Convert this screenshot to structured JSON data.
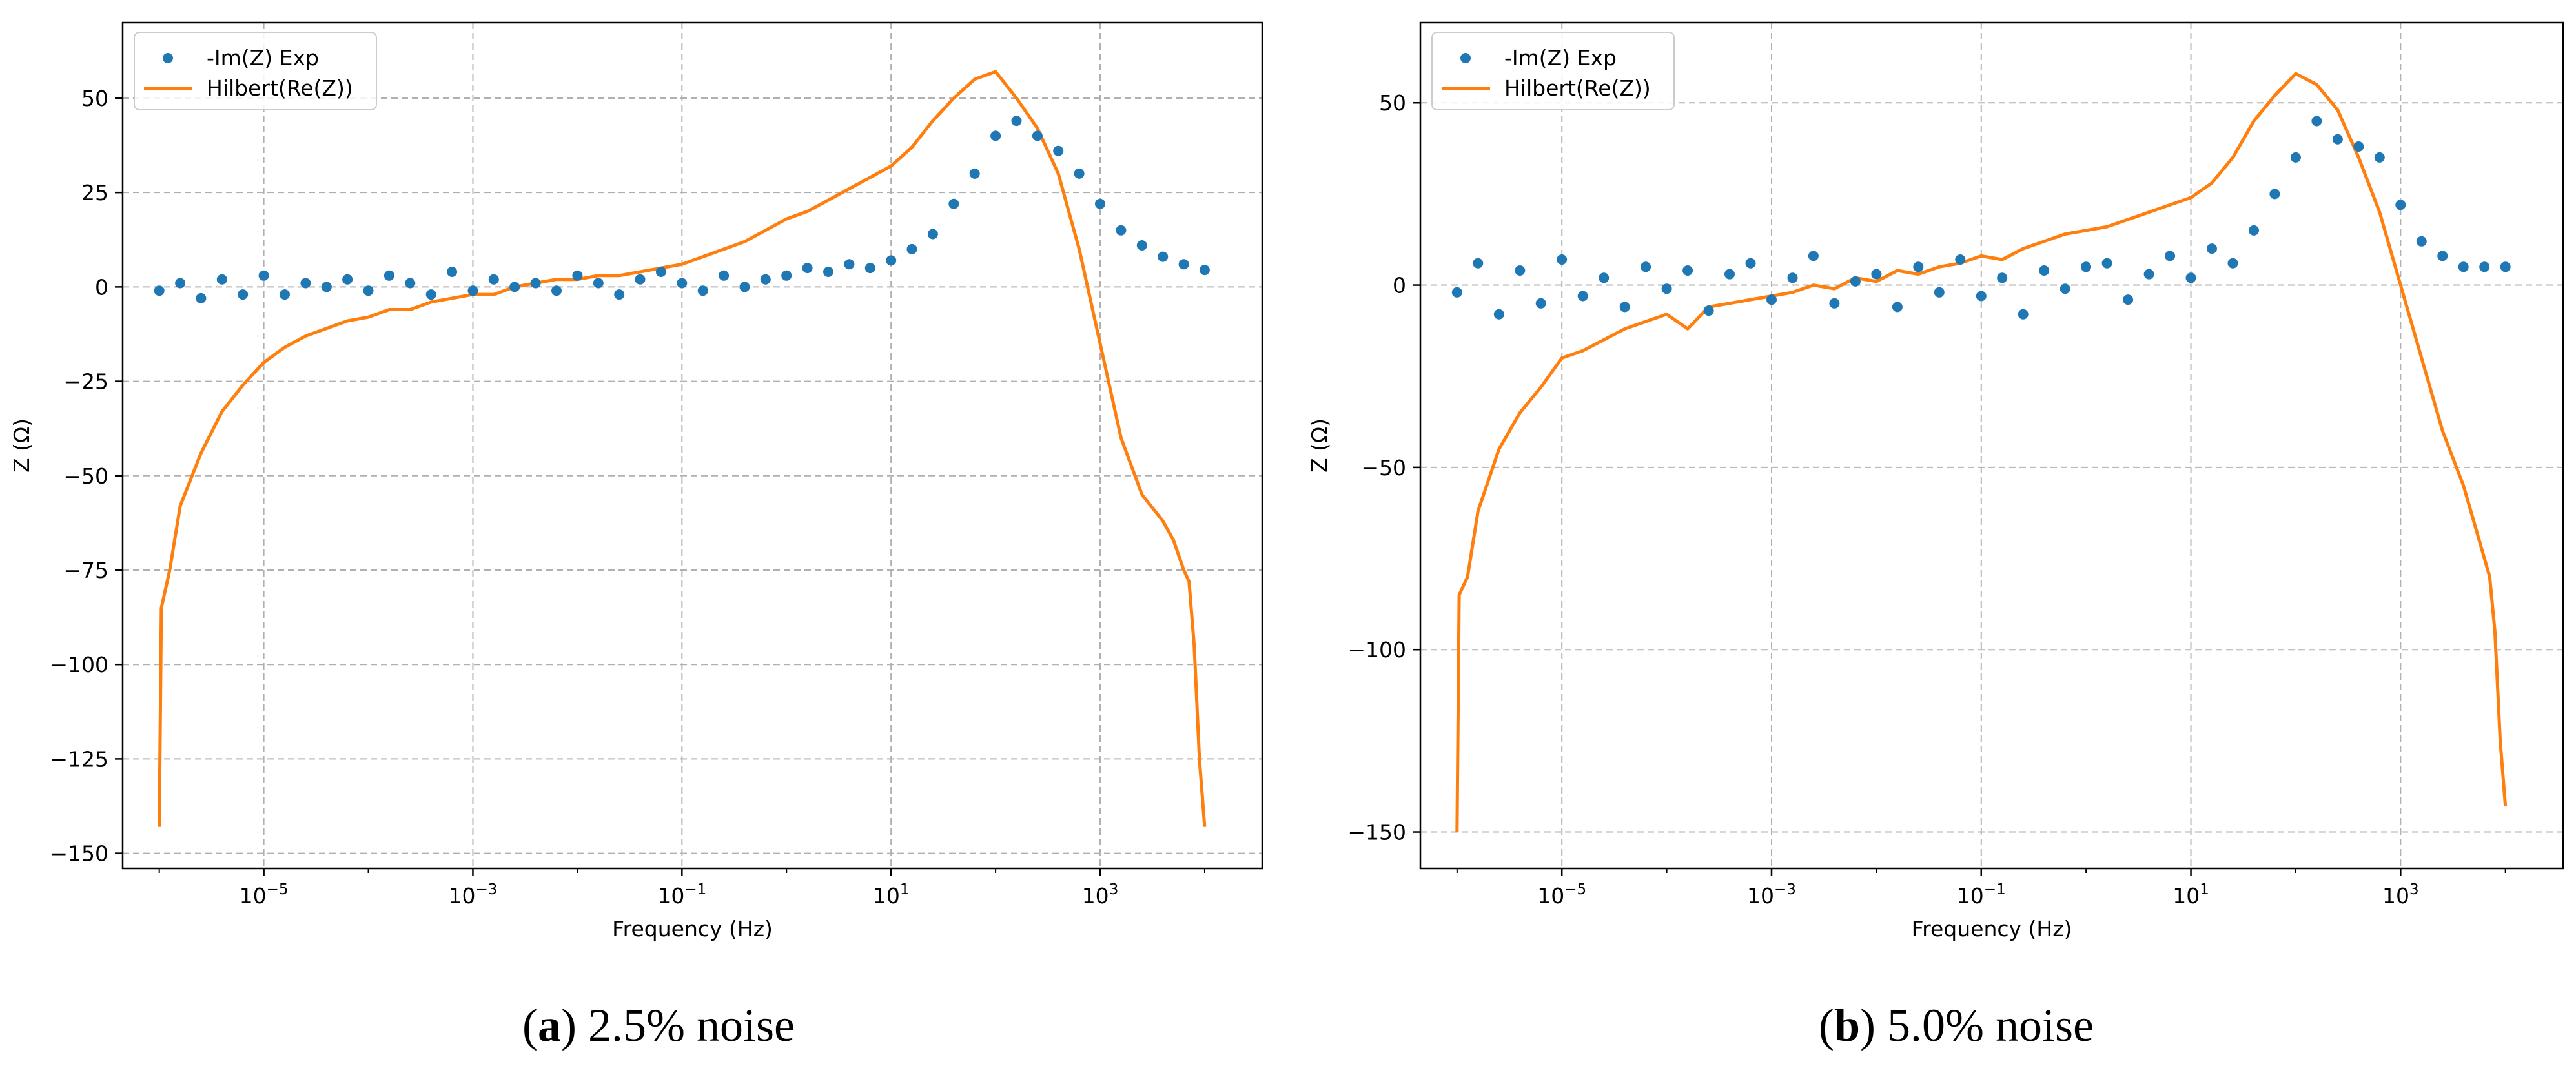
{
  "chart_data": [
    {
      "id": "a",
      "type": "scatter+line",
      "caption": {
        "letter": "a",
        "text": " 2.5% noise"
      },
      "xlabel": "Frequency (Hz)",
      "ylabel": "Z (Ω)",
      "xscale": "log",
      "xlim_log10": [
        -6.35,
        4.55
      ],
      "ylim": [
        -154,
        70
      ],
      "grid": true,
      "legend_position": "top-left",
      "xticks": [
        {
          "exp": -5,
          "base": "10",
          "label": "−5"
        },
        {
          "exp": -3,
          "base": "10",
          "label": "−3"
        },
        {
          "exp": -1,
          "base": "10",
          "label": "−1"
        },
        {
          "exp": 1,
          "base": "10",
          "label": "1"
        },
        {
          "exp": 3,
          "base": "10",
          "label": "3"
        }
      ],
      "yticks": [
        {
          "value": 50,
          "label": "50"
        },
        {
          "value": 25,
          "label": "25"
        },
        {
          "value": 0,
          "label": "0"
        },
        {
          "value": -25,
          "label": "−25"
        },
        {
          "value": -50,
          "label": "−50"
        },
        {
          "value": -75,
          "label": "−75"
        },
        {
          "value": -100,
          "label": "−100"
        },
        {
          "value": -125,
          "label": "−125"
        },
        {
          "value": -150,
          "label": "−150"
        }
      ],
      "series": [
        {
          "name": "-Im(Z) Exp",
          "kind": "scatter",
          "color": "#1f77b4",
          "log10_freq": [
            -6,
            -5.8,
            -5.6,
            -5.4,
            -5.2,
            -5,
            -4.8,
            -4.6,
            -4.4,
            -4.2,
            -4,
            -3.8,
            -3.6,
            -3.4,
            -3.2,
            -3,
            -2.8,
            -2.6,
            -2.4,
            -2.2,
            -2,
            -1.8,
            -1.6,
            -1.4,
            -1.2,
            -1,
            -0.8,
            -0.6,
            -0.4,
            -0.2,
            0,
            0.2,
            0.4,
            0.6,
            0.8,
            1,
            1.2,
            1.4,
            1.6,
            1.8,
            2,
            2.2,
            2.4,
            2.6,
            2.8,
            3,
            3.2,
            3.4,
            3.6,
            3.8,
            4
          ],
          "values": [
            -1,
            1,
            -3,
            2,
            -2,
            3,
            -2,
            1,
            0,
            2,
            -1,
            3,
            1,
            -2,
            4,
            -1,
            2,
            0,
            1,
            -1,
            3,
            1,
            -2,
            2,
            4,
            1,
            -1,
            3,
            0,
            2,
            3,
            5,
            4,
            6,
            5,
            7,
            10,
            14,
            22,
            30,
            40,
            44,
            40,
            36,
            30,
            22,
            15,
            11,
            8,
            6,
            4.5
          ]
        },
        {
          "name": "Hilbert(Re(Z))",
          "kind": "line",
          "color": "#ff7f0e",
          "log10_freq": [
            -6,
            -5.98,
            -5.9,
            -5.8,
            -5.6,
            -5.4,
            -5.2,
            -5,
            -4.8,
            -4.6,
            -4.4,
            -4.2,
            -4,
            -3.8,
            -3.6,
            -3.4,
            -3.2,
            -3,
            -2.8,
            -2.6,
            -2.4,
            -2.2,
            -2,
            -1.8,
            -1.6,
            -1.4,
            -1.2,
            -1,
            -0.8,
            -0.6,
            -0.4,
            -0.2,
            0,
            0.2,
            0.4,
            0.6,
            0.8,
            1,
            1.2,
            1.4,
            1.6,
            1.8,
            2,
            2.2,
            2.4,
            2.6,
            2.8,
            3,
            3.2,
            3.4,
            3.6,
            3.7,
            3.8,
            3.85,
            3.9,
            3.95,
            4
          ],
          "values": [
            -143,
            -85,
            -75,
            -58,
            -44,
            -33,
            -26,
            -20,
            -16,
            -13,
            -11,
            -9,
            -8,
            -6,
            -6,
            -4,
            -3,
            -2,
            -2,
            0,
            1,
            2,
            2,
            3,
            3,
            4,
            5,
            6,
            8,
            10,
            12,
            15,
            18,
            20,
            23,
            26,
            29,
            32,
            37,
            44,
            50,
            55,
            57,
            50,
            42,
            30,
            10,
            -15,
            -40,
            -55,
            -62,
            -67,
            -75,
            -78,
            -95,
            -125,
            -143
          ]
        }
      ]
    },
    {
      "id": "b",
      "type": "scatter+line",
      "caption": {
        "letter": "b",
        "text": " 5.0% noise"
      },
      "xlabel": "Frequency (Hz)",
      "ylabel": "Z (Ω)",
      "xscale": "log",
      "xlim_log10": [
        -6.35,
        4.55
      ],
      "ylim": [
        -160,
        72
      ],
      "grid": true,
      "legend_position": "top-left",
      "xticks": [
        {
          "exp": -5,
          "base": "10",
          "label": "−5"
        },
        {
          "exp": -3,
          "base": "10",
          "label": "−3"
        },
        {
          "exp": -1,
          "base": "10",
          "label": "−1"
        },
        {
          "exp": 1,
          "base": "10",
          "label": "1"
        },
        {
          "exp": 3,
          "base": "10",
          "label": "3"
        }
      ],
      "yticks": [
        {
          "value": 50,
          "label": "50"
        },
        {
          "value": 0,
          "label": "0"
        },
        {
          "value": -50,
          "label": "−50"
        },
        {
          "value": -100,
          "label": "−100"
        },
        {
          "value": -150,
          "label": "−150"
        }
      ],
      "series": [
        {
          "name": "-Im(Z) Exp",
          "kind": "scatter",
          "color": "#1f77b4",
          "log10_freq": [
            -6,
            -5.8,
            -5.6,
            -5.4,
            -5.2,
            -5,
            -4.8,
            -4.6,
            -4.4,
            -4.2,
            -4,
            -3.8,
            -3.6,
            -3.4,
            -3.2,
            -3,
            -2.8,
            -2.6,
            -2.4,
            -2.2,
            -2,
            -1.8,
            -1.6,
            -1.4,
            -1.2,
            -1,
            -0.8,
            -0.6,
            -0.4,
            -0.2,
            0,
            0.2,
            0.4,
            0.6,
            0.8,
            1,
            1.2,
            1.4,
            1.6,
            1.8,
            2,
            2.2,
            2.4,
            2.6,
            2.8,
            3,
            3.2,
            3.4,
            3.6,
            3.8,
            4
          ],
          "values": [
            -2,
            6,
            -8,
            4,
            -5,
            7,
            -3,
            2,
            -6,
            5,
            -1,
            4,
            -7,
            3,
            6,
            -4,
            2,
            8,
            -5,
            1,
            3,
            -6,
            5,
            -2,
            7,
            -3,
            2,
            -8,
            4,
            -1,
            5,
            6,
            -4,
            3,
            8,
            2,
            10,
            6,
            15,
            25,
            35,
            45,
            40,
            38,
            35,
            22,
            12,
            8,
            5,
            5,
            5
          ]
        },
        {
          "name": "Hilbert(Re(Z))",
          "kind": "line",
          "color": "#ff7f0e",
          "log10_freq": [
            -6,
            -5.98,
            -5.9,
            -5.8,
            -5.6,
            -5.4,
            -5.2,
            -5,
            -4.8,
            -4.6,
            -4.4,
            -4.2,
            -4,
            -3.8,
            -3.6,
            -3.4,
            -3.2,
            -3,
            -2.8,
            -2.6,
            -2.4,
            -2.2,
            -2,
            -1.8,
            -1.6,
            -1.4,
            -1.2,
            -1,
            -0.8,
            -0.6,
            -0.4,
            -0.2,
            0,
            0.2,
            0.4,
            0.6,
            0.8,
            1,
            1.2,
            1.4,
            1.6,
            1.8,
            2,
            2.2,
            2.4,
            2.6,
            2.8,
            3,
            3.2,
            3.4,
            3.6,
            3.7,
            3.8,
            3.85,
            3.9,
            3.95,
            4
          ],
          "values": [
            -150,
            -85,
            -80,
            -62,
            -45,
            -35,
            -28,
            -20,
            -18,
            -15,
            -12,
            -10,
            -8,
            -12,
            -6,
            -5,
            -4,
            -3,
            -2,
            0,
            -1,
            2,
            1,
            4,
            3,
            5,
            6,
            8,
            7,
            10,
            12,
            14,
            15,
            16,
            18,
            20,
            22,
            24,
            28,
            35,
            45,
            52,
            58,
            55,
            48,
            35,
            20,
            0,
            -20,
            -40,
            -55,
            -65,
            -75,
            -80,
            -95,
            -125,
            -143
          ]
        }
      ]
    }
  ]
}
